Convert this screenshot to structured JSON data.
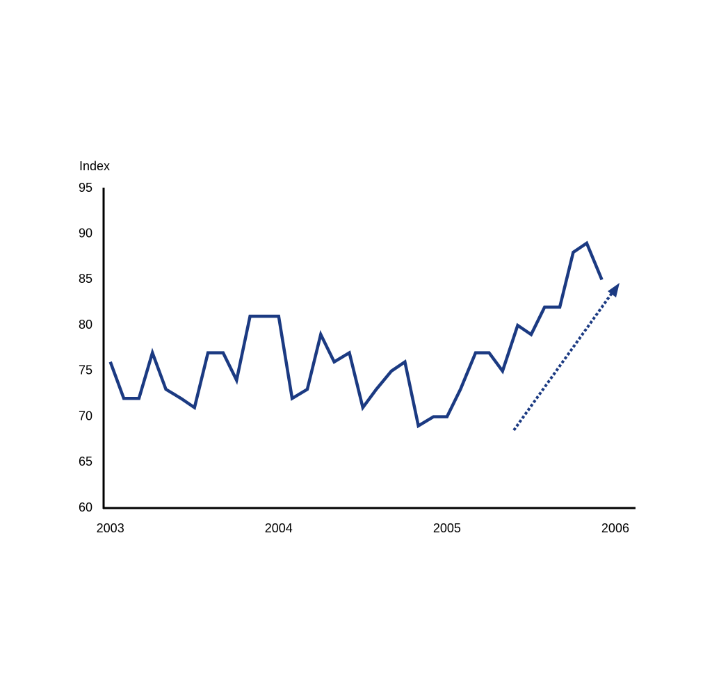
{
  "chart_data": {
    "type": "line",
    "y_label": "Index",
    "x": [
      2003,
      2003.08,
      2003.17,
      2003.25,
      2003.33,
      2003.42,
      2003.5,
      2003.58,
      2003.67,
      2003.75,
      2003.83,
      2003.92,
      2004,
      2004.08,
      2004.17,
      2004.25,
      2004.33,
      2004.42,
      2004.5,
      2004.58,
      2004.67,
      2004.75,
      2004.83,
      2004.92,
      2005,
      2005.08,
      2005.17,
      2005.25,
      2005.33,
      2005.42,
      2005.5,
      2005.58,
      2005.67,
      2005.75,
      2005.83,
      2005.92
    ],
    "series": [
      {
        "color": "#1b3a82",
        "values": [
          76,
          72,
          72,
          77,
          73,
          72,
          71,
          77,
          77,
          74,
          81,
          81,
          81,
          72,
          73,
          79,
          76,
          77,
          71,
          73,
          75,
          76,
          69,
          70,
          70,
          73,
          77,
          77,
          75,
          80,
          79,
          82,
          82,
          88,
          89,
          85
        ]
      }
    ],
    "xlim": [
      2002.96,
      2006.12
    ],
    "xticks": [
      2003,
      2004,
      2005,
      2006
    ],
    "ylim": [
      60,
      95
    ],
    "yticks": [
      60,
      65,
      70,
      75,
      80,
      85,
      90,
      95
    ]
  }
}
